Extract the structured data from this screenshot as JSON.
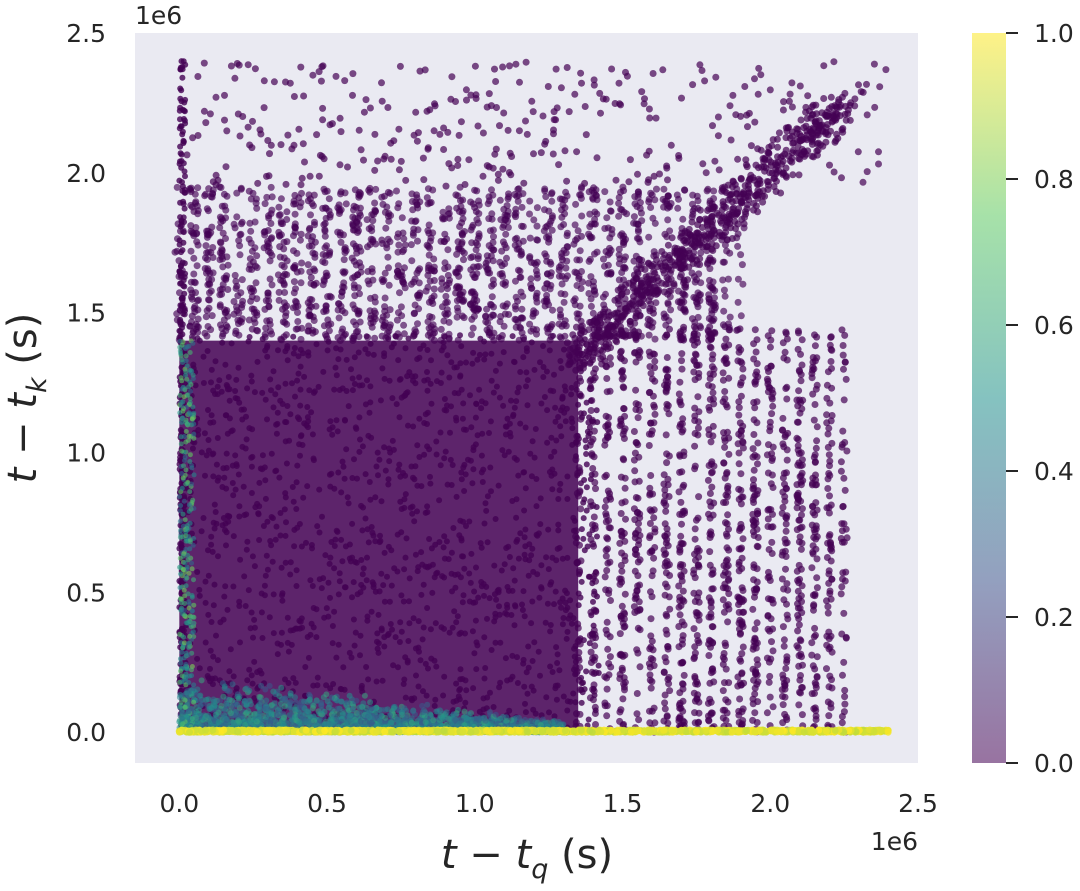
{
  "chart_data": {
    "type": "scatter",
    "title": "",
    "xlabel": {
      "main": "t − t",
      "sub": "q",
      "unit": " (s)"
    },
    "ylabel": {
      "main": "t − t",
      "sub": "k",
      "unit": " (s)"
    },
    "x_exponent_label": "1e6",
    "y_exponent_label": "1e6",
    "xlim": [
      -0.15,
      2.5
    ],
    "ylim": [
      -0.11,
      2.5
    ],
    "x_ticks": [
      0.0,
      0.5,
      1.0,
      1.5,
      2.0,
      2.5
    ],
    "x_tick_labels": [
      "0.0",
      "0.5",
      "1.0",
      "1.5",
      "2.0",
      "2.5"
    ],
    "y_ticks": [
      0.0,
      0.5,
      1.0,
      1.5,
      2.0,
      2.5
    ],
    "y_tick_labels": [
      "0.0",
      "0.5",
      "1.0",
      "1.5",
      "2.0",
      "2.5"
    ],
    "grid": false,
    "background_color": "#eaeaf2",
    "colormap": "viridis",
    "alpha": 0.5,
    "colorbar": {
      "range": [
        0.0,
        1.0
      ],
      "ticks": [
        0.0,
        0.2,
        0.4,
        0.6,
        0.8,
        1.0
      ],
      "tick_labels": [
        "0.0",
        "0.2",
        "0.4",
        "0.6",
        "0.8",
        "1.0"
      ],
      "colors": [
        "#440154",
        "#3b528b",
        "#21918c",
        "#5ec962",
        "#fde725"
      ]
    },
    "regions": [
      {
        "name": "dense-block",
        "x": [
          0.0,
          1.4
        ],
        "y": [
          0.0,
          1.4
        ],
        "value": 0.0
      },
      {
        "name": "upper-sparse-band",
        "x": [
          0.0,
          1.9
        ],
        "y": [
          1.4,
          1.95
        ],
        "value": 0.0
      },
      {
        "name": "right-sparse-band",
        "x": [
          1.4,
          2.25
        ],
        "y": [
          0.0,
          1.4
        ],
        "value": 0.0
      },
      {
        "name": "diagonal-cluster",
        "x": [
          1.4,
          1.8
        ],
        "y": [
          1.4,
          1.8
        ],
        "value": 0.0
      },
      {
        "name": "bottom-teal-band",
        "x": [
          0.0,
          1.3
        ],
        "y": [
          0.0,
          0.2
        ],
        "value": 0.45
      },
      {
        "name": "bottom-yellow-line",
        "x": [
          0.0,
          2.4
        ],
        "y": [
          0.0,
          0.01
        ],
        "value": 1.0
      }
    ]
  }
}
